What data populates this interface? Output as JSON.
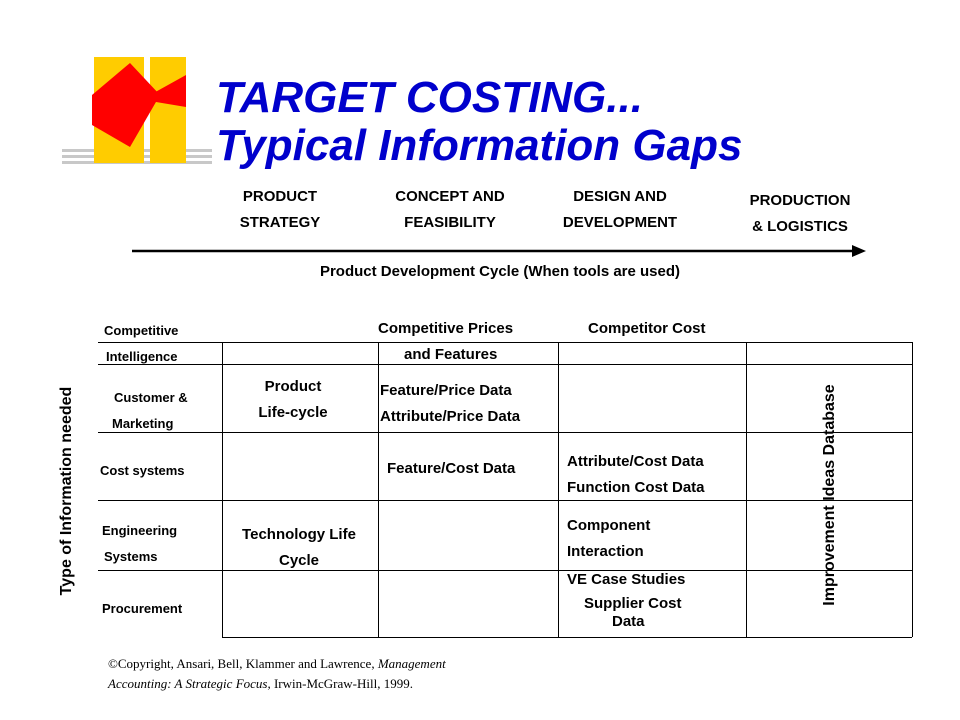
{
  "title": {
    "line1": "TARGET COSTING...",
    "line2": "Typical Information Gaps"
  },
  "phases": [
    {
      "line1": "PRODUCT",
      "line2": "STRATEGY"
    },
    {
      "line1": "CONCEPT AND",
      "line2": "FEASIBILITY"
    },
    {
      "line1": "DESIGN AND",
      "line2": "DEVELOPMENT"
    },
    {
      "line1": "PRODUCTION",
      "line2": "& LOGISTICS"
    }
  ],
  "cycle_label": "Product Development Cycle (When tools are used)",
  "vertical_left": "Type of Information needed",
  "vertical_right": "Improvement Ideas Database",
  "rows": [
    {
      "line1": "Competitive",
      "line2": "Intelligence"
    },
    {
      "line1": "Customer  &",
      "line2": "Marketing"
    },
    {
      "line1": "Cost systems"
    },
    {
      "line1": "Engineering",
      "line2": "Systems"
    },
    {
      "line1": "Procurement"
    }
  ],
  "cells": {
    "comp_prices": {
      "line1": "Competitive Prices",
      "line2": "and Features"
    },
    "comp_cost": "Competitor Cost",
    "product_lifecycle": {
      "line1": "Product",
      "line2": "Life-cycle"
    },
    "feature_price": {
      "line1": "Feature/Price Data",
      "line2": "Attribute/Price Data"
    },
    "feature_cost": "Feature/Cost Data",
    "attr_cost": {
      "line1": "Attribute/Cost Data",
      "line2": "Function Cost Data"
    },
    "tech_life": {
      "line1": "Technology Life",
      "line2": "Cycle"
    },
    "component": {
      "line1": "Component",
      "line2": "Interaction"
    },
    "ve_case": "VE Case Studies",
    "supplier": {
      "line1": "Supplier Cost",
      "line2": "Data"
    }
  },
  "copyright": {
    "symbol": "©",
    "prefix": "Copyright, Ansari, Bell, Klammer and Lawrence, ",
    "book_part1": "Management",
    "book_part2": "Accounting: A Strategic Focus,",
    "suffix": " Irwin-McGraw-Hill, 1999."
  },
  "colors": {
    "title": "#0000cc",
    "logo_red": "#ff0000",
    "logo_yellow": "#ffcc00"
  }
}
